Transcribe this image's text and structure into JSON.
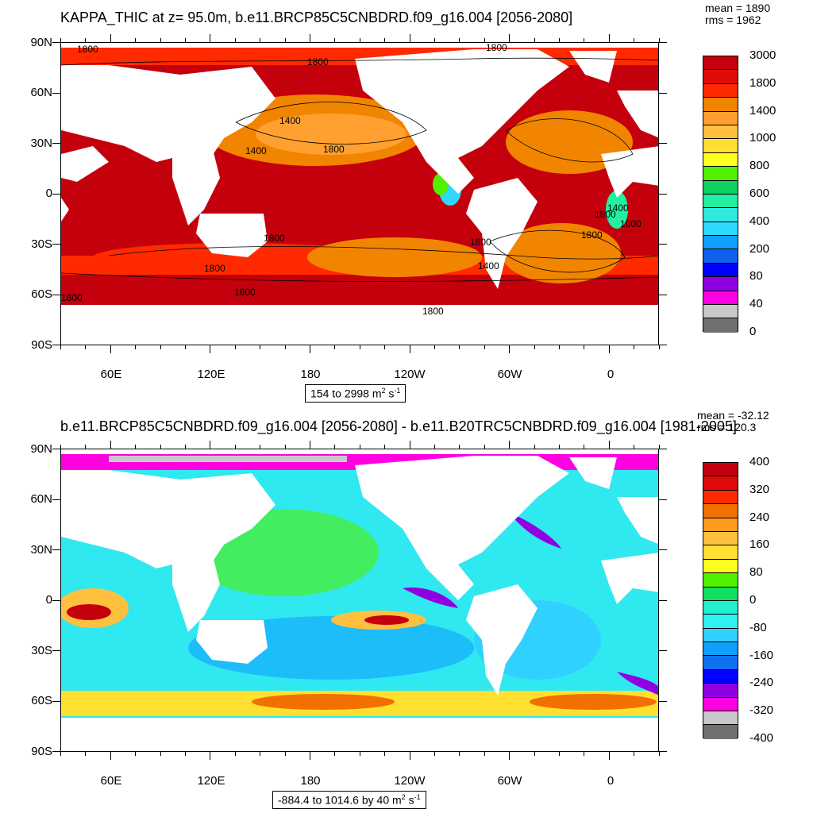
{
  "panel_top": {
    "title": "KAPPA_THIC at z=  95.0m, b.e11.BRCP85C5CNBDRD.f09_g16.004 [2056-2080]",
    "mean": "mean = 1890",
    "rms": "rms = 1962",
    "range_main": "154 to 2998 m",
    "range_sup1": "2",
    "range_mid": " s",
    "range_sup2": "-1",
    "contour_labels": [
      "1800",
      "1800",
      "1800",
      "1400",
      "1400",
      "1800",
      "1800",
      "1800",
      "1800",
      "1800",
      "1800",
      "1800",
      "1400",
      "1800",
      "1800",
      "1400",
      "1000"
    ],
    "colorbar_labels": [
      "3000",
      "1800",
      "1400",
      "1000",
      "800",
      "600",
      "400",
      "200",
      "80",
      "40",
      "0"
    ],
    "colorbar_colors": [
      "#c4000c",
      "#e00a08",
      "#ff2a00",
      "#f28500",
      "#ffa030",
      "#ffc040",
      "#ffe030",
      "#ffff20",
      "#50f000",
      "#10d060",
      "#20f0a0",
      "#30e8e0",
      "#30d8ff",
      "#10a0ff",
      "#1060f0",
      "#0000ff",
      "#9000e0",
      "#ff00e0",
      "#c8c8c8",
      "#707070"
    ]
  },
  "panel_bottom": {
    "title": "b.e11.BRCP85C5CNBDRD.f09_g16.004 [2056-2080] - b.e11.B20TRC5CNBDRD.f09_g16.004 [1981-2005]",
    "mean": "mean = -32.12",
    "rms": "rms = 120.3",
    "range_main": "-884.4 to 1014.6 by 40 m",
    "range_sup1": "2",
    "range_mid": " s",
    "range_sup2": "-1",
    "colorbar_labels": [
      "400",
      "320",
      "240",
      "160",
      "80",
      "0",
      "-80",
      "-160",
      "-240",
      "-320",
      "-400"
    ],
    "colorbar_colors": [
      "#c4000c",
      "#e00a08",
      "#ff2a00",
      "#f27000",
      "#ff9a20",
      "#ffc040",
      "#ffe030",
      "#ffff20",
      "#50f000",
      "#10e060",
      "#20f0d0",
      "#30f0f0",
      "#30d0ff",
      "#10a0ff",
      "#1070f0",
      "#0000ff",
      "#9000e0",
      "#ff00e0",
      "#c8c8c8",
      "#707070"
    ]
  },
  "axes": {
    "lat_labels": [
      "90N",
      "60N",
      "30N",
      "0",
      "30S",
      "60S",
      "90S"
    ],
    "lon_labels": [
      "60E",
      "120E",
      "180",
      "120W",
      "60W",
      "0"
    ]
  },
  "colors": {
    "land": "#ffffff",
    "ocean_top": "#c4000c",
    "ocean_bottom": "#30e8f0"
  }
}
